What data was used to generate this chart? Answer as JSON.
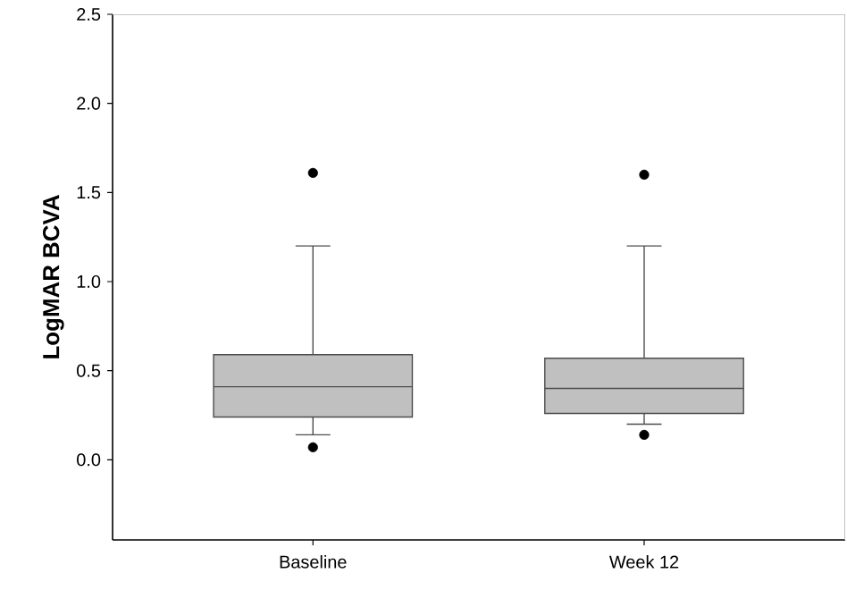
{
  "chart_data": {
    "type": "box",
    "ylabel": "LogMAR BCVA",
    "categories": [
      "Baseline",
      "Week 12"
    ],
    "series": [
      {
        "color": "#c0c0c0",
        "boxes": [
          {
            "low": 0.14,
            "q1": 0.24,
            "median": 0.41,
            "q3": 0.59,
            "high": 1.2,
            "outliers": [
              1.61,
              0.07
            ]
          },
          {
            "low": 0.2,
            "q1": 0.26,
            "median": 0.4,
            "q3": 0.57,
            "high": 1.2,
            "outliers": [
              1.6,
              0.14
            ]
          }
        ]
      }
    ],
    "ylim": [
      -0.45,
      2.5
    ],
    "yticks": [
      {
        "value": 0,
        "label": "0.0"
      },
      {
        "value": 0.5,
        "label": "0.5"
      },
      {
        "value": 1,
        "label": "1.0"
      },
      {
        "value": 1.5,
        "label": "1.5"
      },
      {
        "value": 2,
        "label": "2.0"
      },
      {
        "value": 2.5,
        "label": "2.5"
      }
    ]
  }
}
